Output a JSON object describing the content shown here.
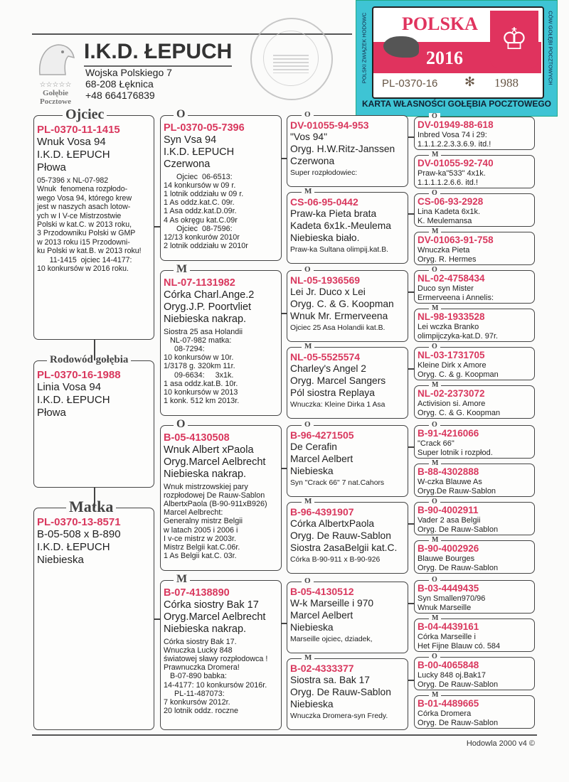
{
  "header": {
    "title": "I.K.D. ŁEPUCH",
    "address1": "Wojska Polskiego 7",
    "address2": "68-208 Łęknica",
    "phone": "+48  664176839",
    "logo_text1": "Gołębie",
    "logo_text2": "Pocztowe",
    "logo_stars": "☆☆☆☆☆"
  },
  "stamp": {
    "text": "Hodowla Gołębi Pocztowych · Łepuch I.K.D."
  },
  "sticker": {
    "country": "POLSKA",
    "year": "2016",
    "ring_prefix": "PL-0370-16",
    "ring_number": "1988",
    "side_left": "POLSKI ZWIĄZEK HODOWC",
    "side_right": "CÓW GOŁĘBI POCZTOWYCH",
    "bottom": "KARTA WŁASNOŚCI GOŁĘBIA POCZTOWEGO",
    "accent": "#d9385e",
    "border": "#3ec4d4"
  },
  "colors": {
    "ring": "#d9385e"
  },
  "pigeon": {
    "label": "Rodowód gołębia",
    "ring": "PL-0370-16-1988",
    "lines": [
      "Linia Vosa 94",
      "I.K.D. ŁEPUCH",
      "Płowa"
    ],
    "note": ""
  },
  "father": {
    "label": "Ojciec",
    "ring": "PL-0370-11-1415",
    "lines": [
      "Wnuk Vosa 94",
      "I.K.D. ŁEPUCH",
      "Płowa"
    ],
    "note": "05-7396 x NL-07-982\nWnuk  fenomena rozpłodo-\nwego Vosa 94, którego krew\njest w naszych asach lotow-\nych w I V-ce Mistrzostwie\nPolski w kat.C. w 2013 roku,\n3 Przodowniku Polski w GMP\nw 2013 roku i15 Przodowni-\nku Polski w kat.B. w 2013 roku!\n      11-1415  ojciec 14-4177:\n10 konkursów w 2016 roku."
  },
  "mother": {
    "label": "Matka",
    "ring": "PL-0370-13-8571",
    "lines": [
      "B-05-508 x B-890",
      "I.K.D. ŁEPUCH",
      "Niebieska"
    ],
    "note": ""
  },
  "gen2": [
    {
      "label": "O",
      "ring": "PL-0370-05-7396",
      "lines": [
        "Syn Vsa 94",
        "I.K.D. ŁEPUCH",
        "Czerwona"
      ],
      "note": "      Ojciec  06-6513:\n14 konkursów w 09 r.\n1 lotnik oddziału w 09 r.\n1 As oddz.kat.C. 09r.\n1 Asa oddz.kat.D.09r.\n4 As okręgu kat.C.09r\n      Ojciec  08-7596:\n12/13 konkurów 2010r\n2 lotnik oddziału w 2010r"
    },
    {
      "label": "M",
      "ring": "NL-07-1131982",
      "lines": [
        "Córka Charl.Ange.2",
        "Oryg.J.P. Poortvliet",
        "Niebieska nakrap."
      ],
      "note": "Siostra 25 asa Holandii\n   NL-07-982 matka:\n     08-7294:\n10 konkursów w 10r.\n1/3178 g. 320km 11r.\n     09-6634:     3x1k.\n1 asa oddz.kat.B. 10r.\n10 konkursów w 2013\n1 konk. 512 km 2013r."
    },
    {
      "label": "O",
      "ring": "B-05-4130508",
      "lines": [
        "Wnuk Albert xPaola",
        "Oryg.Marcel Aelbrecht",
        "Niebieska nakrap."
      ],
      "note": "Wnuk mistrzowskiej pary\nrozpłodowej De Rauw-Sablon\nAlbertxPaola (B-90-911xB926)\nMarcel Aelbrecht:\nGeneralny mistrz Belgii\nw latach 2005 i 2006 i\nI v-ce mistrz w 2003r.\nMistrz Belgii kat.C.06r.\n1 As Belgii kat.C. 03r."
    },
    {
      "label": "M",
      "ring": "B-07-4138890",
      "lines": [
        "Córka siostry Bak 17",
        "Oryg.Marcel Aelbrecht",
        "Niebieska nakrap."
      ],
      "note": "Córka siostry Bak 17.\nWnuczka Lucky 848\nświatowej sławy rozpłodowca !\nPrawnuczka Dromera!\n   B-07-890 babka:\n14-4177: 10 konkursów 2016r.\n     PL-11-487073:\n7 konkursów 2012r.\n20 lotnik oddz. roczne"
    }
  ],
  "gen3": [
    {
      "label": "O",
      "ring": "DV-01055-94-953",
      "lines": [
        "\"Vos 94\"",
        "Oryg. H.W.Ritz-Janssen",
        "Czerwona"
      ],
      "note": "Super rozpłodowiec:"
    },
    {
      "label": "M",
      "ring": "CS-06-95-0442",
      "lines": [
        "Praw-ka Pieta brata",
        "Kadeta 6x1k.-Meulema",
        "Niebieska biało."
      ],
      "note": "Praw-ka Sultana olimpij.kat.B."
    },
    {
      "label": "O",
      "ring": "NL-05-1936569",
      "lines": [
        "Lei Jr.   Duco x Lei",
        "Oryg. C. & G. Koopman",
        "Wnuk Mr. Ermerveena"
      ],
      "note": "Ojciec 25 Asa Holandii kat.B."
    },
    {
      "label": "M",
      "ring": "NL-05-5525574",
      "lines": [
        "Charley's Angel 2",
        "Oryg. Marcel Sangers",
        "Pól siostra Replaya"
      ],
      "note": "Wnuczka: Kleine Dirka 1 Asa"
    },
    {
      "label": "O",
      "ring": "B-96-4271505",
      "lines": [
        "De Cerafin",
        "Marcel Aelbert",
        "Niebieska"
      ],
      "note": "Syn \"Crack 66\" 7 nat.Cahors"
    },
    {
      "label": "M",
      "ring": "B-96-4391907",
      "lines": [
        "Córka AlbertxPaola",
        "Oryg. De Rauw-Sablon",
        "Siostra 2asaBelgii kat.C."
      ],
      "note": "Córka B-90-911 x B-90-926"
    },
    {
      "label": "O",
      "ring": "B-05-4130512",
      "lines": [
        "W-k Marseille i 970",
        "Marcel Aelbert",
        "Niebieska"
      ],
      "note": "Marseille ojciec, dziadek,"
    },
    {
      "label": "M",
      "ring": "B-02-4333377",
      "lines": [
        "Siostra sa. Bak 17",
        "Oryg. De Rauw-Sablon",
        "Niebieska"
      ],
      "note": "Wnuczka Dromera-syn Fredy."
    }
  ],
  "gen4": [
    {
      "label": "O",
      "ring": "DV-01949-88-618",
      "lines": [
        "Inbred Vosa 74 i 29:",
        "1.1.1.2.2.3.3.6.9. itd.!"
      ]
    },
    {
      "label": "M",
      "ring": "DV-01055-92-740",
      "lines": [
        "Praw-ka\"533\" 4x1k.",
        "1.1.1.1.2.6.6. itd.!"
      ]
    },
    {
      "label": "O",
      "ring": "CS-06-93-2928",
      "lines": [
        "Lina Kadeta 6x1k.",
        "K. Meulemansa"
      ]
    },
    {
      "label": "M",
      "ring": "DV-01063-91-758",
      "lines": [
        "Wnuczka Pieta",
        "Oryg. R. Hermes"
      ]
    },
    {
      "label": "O",
      "ring": "NL-02-4758434",
      "lines": [
        "Duco     syn Mister",
        "Ermerveena i Annelis:"
      ]
    },
    {
      "label": "M",
      "ring": "NL-98-1933528",
      "lines": [
        "Lei   wczka Branko",
        "olimpijczyka-kat.D. 97r."
      ]
    },
    {
      "label": "O",
      "ring": "NL-03-1731705",
      "lines": [
        "Kleine Dirk x Amore",
        "Oryg. C. & g. Koopman"
      ]
    },
    {
      "label": "M",
      "ring": "NL-02-2373072",
      "lines": [
        "Activision si. Amore",
        "Oryg. C. & G. Koopman"
      ]
    },
    {
      "label": "O",
      "ring": "B-91-4216066",
      "lines": [
        "\"Crack 66\"",
        "Super lotnik i rozpłod."
      ]
    },
    {
      "label": "M",
      "ring": "B-88-4302888",
      "lines": [
        "W-czka Blauwe As",
        "Oryg.De Rauw-Sablon"
      ]
    },
    {
      "label": "O",
      "ring": "B-90-4002911",
      "lines": [
        "Vader 2 asa Belgii",
        "Oryg. De Rauw-Sablon"
      ]
    },
    {
      "label": "M",
      "ring": "B-90-4002926",
      "lines": [
        "Blauwe Bourges",
        "Oryg. De Rauw-Sablon"
      ]
    },
    {
      "label": "O",
      "ring": "B-03-4449435",
      "lines": [
        "Syn Smallen970/96",
        "Wnuk Marseille"
      ]
    },
    {
      "label": "M",
      "ring": "B-04-4439161",
      "lines": [
        "Córka Marseille i",
        "Het Fijne Blauw có. 584"
      ]
    },
    {
      "label": "O",
      "ring": "B-00-4065848",
      "lines": [
        "Lucky 848 oj.Bak17",
        "Oryg. De Rauw-Sablon"
      ]
    },
    {
      "label": "M",
      "ring": "B-01-4489665",
      "lines": [
        "Córka Dromera",
        "Oryg. De Rauw-Sablon"
      ]
    }
  ],
  "footer": {
    "text": "Hodowla 2000 v4 ©"
  }
}
